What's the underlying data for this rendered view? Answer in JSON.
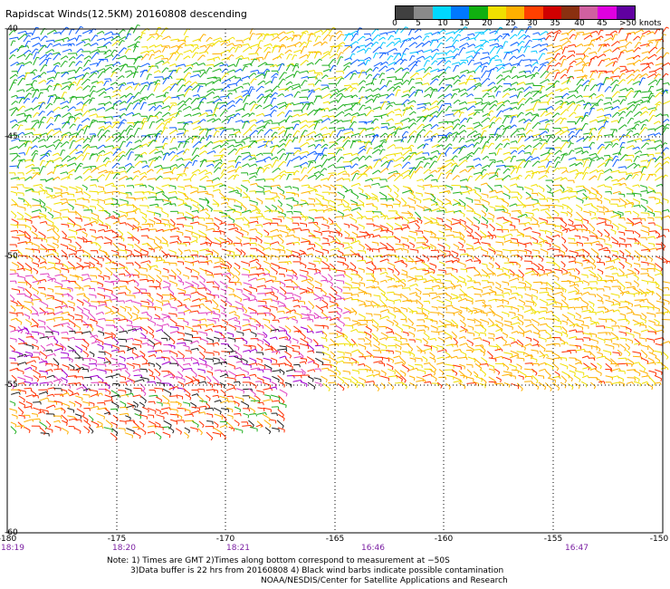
{
  "title": "Rapidscat Winds(12.5KM) 20160808 descending",
  "legend": {
    "colors": [
      "#404040",
      "#8a8a8a",
      "#00d8ff",
      "#0078ff",
      "#10b010",
      "#f0e000",
      "#ffb000",
      "#ff4000",
      "#d00000",
      "#8a3010",
      "#d060a0",
      "#e000e0",
      "#6000a0"
    ],
    "labels": [
      "0",
      "5",
      "10",
      "15",
      "20",
      "25",
      "30",
      "35",
      "40",
      "45",
      ">50 knots"
    ]
  },
  "axes": {
    "lon_labels": [
      "-180",
      "-175",
      "-170",
      "-165",
      "-160",
      "-155",
      "-150"
    ],
    "lat_labels": [
      "-40",
      "-45",
      "-50",
      "-55",
      "-60"
    ],
    "time_labels": [
      "18:19",
      "18:20",
      "18:21",
      "16:46",
      "16:47"
    ]
  },
  "notes": {
    "line1": "Note: 1) Times are GMT 2)Times along bottom correspond to measurement at −50S",
    "line2": "3)Data buffer is 22 hrs from 20160808 4) Black wind barbs indicate possible contamination",
    "line3": "NOAA/NESDIS/Center for Satellite Applications and Research"
  }
}
